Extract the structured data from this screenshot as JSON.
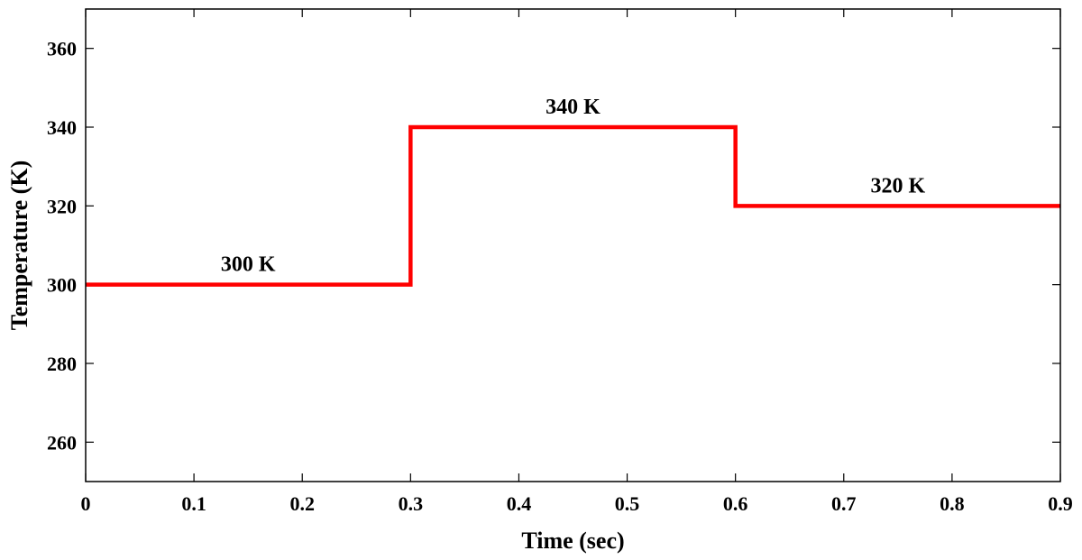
{
  "chart_data": {
    "type": "line",
    "title": "",
    "xlabel": "Time (sec)",
    "ylabel": "Temperature (K)",
    "xlim": [
      0,
      0.9
    ],
    "ylim": [
      250,
      370
    ],
    "x_ticks": [
      0,
      0.1,
      0.2,
      0.3,
      0.4,
      0.5,
      0.6,
      0.7,
      0.8,
      0.9
    ],
    "x_tick_labels": [
      "0",
      "0.1",
      "0.2",
      "0.3",
      "0.4",
      "0.5",
      "0.6",
      "0.7",
      "0.8",
      "0.9"
    ],
    "y_ticks": [
      260,
      280,
      300,
      320,
      340,
      360
    ],
    "y_tick_labels": [
      "260",
      "280",
      "300",
      "320",
      "340",
      "360"
    ],
    "grid": false,
    "series": [
      {
        "color": "#ff0000",
        "x": [
          0,
          0.3,
          0.3,
          0.6,
          0.6,
          0.9
        ],
        "y": [
          300,
          300,
          340,
          340,
          320,
          320
        ]
      }
    ],
    "annotations": [
      {
        "text": "300 K",
        "x": 0.15,
        "y": 300
      },
      {
        "text": "340 K",
        "x": 0.45,
        "y": 340
      },
      {
        "text": "320 K",
        "x": 0.75,
        "y": 320
      }
    ]
  }
}
